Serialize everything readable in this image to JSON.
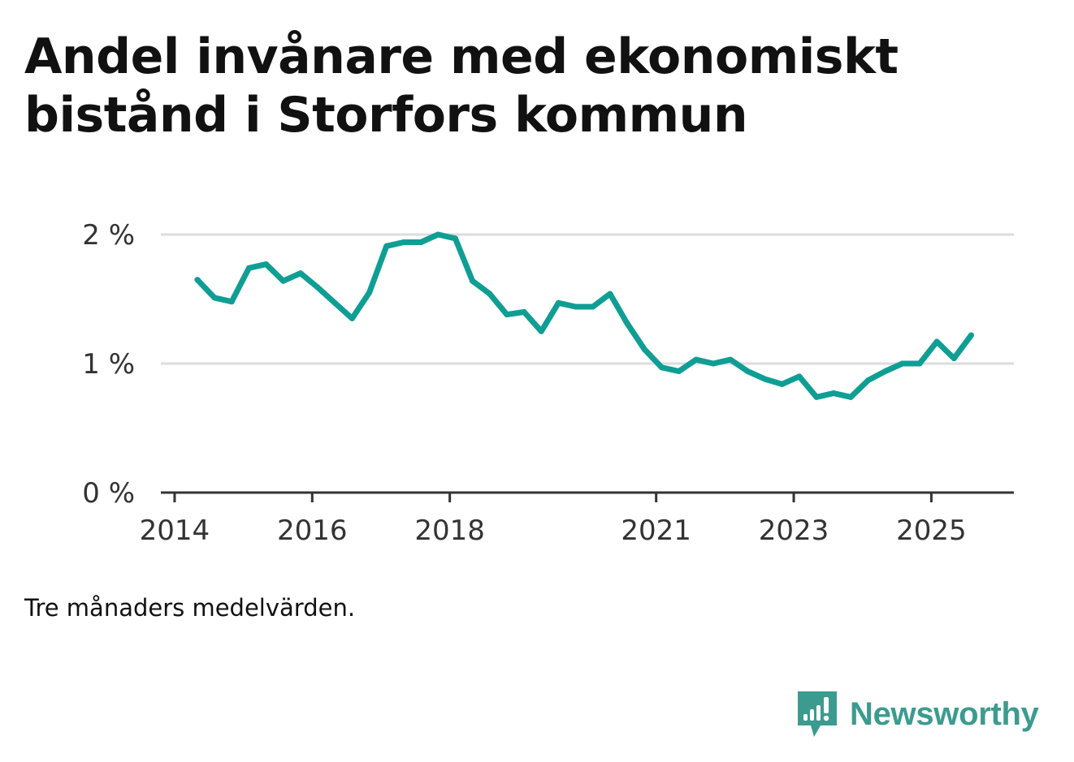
{
  "colors": {
    "line": "#0f9e94",
    "grid": "#dddddd",
    "axis": "#333333",
    "brand": "#3c9b8f"
  },
  "footnote": "Tre månaders medelvärden.",
  "brand": {
    "name": "Newsworthy",
    "icon": "newsworthy-logo-icon"
  },
  "chart_data": {
    "type": "line",
    "title": "Andel invånare med ekonomiskt bistånd i Storfors kommun",
    "xlabel": "",
    "ylabel": "",
    "ylim": [
      0,
      2
    ],
    "xlim": [
      2013.8,
      2026.2
    ],
    "yticks": [
      {
        "value": 0,
        "label": "0 %"
      },
      {
        "value": 1,
        "label": "1 %"
      },
      {
        "value": 2,
        "label": "2 %"
      }
    ],
    "xticks": [
      {
        "value": 2014,
        "label": "2014"
      },
      {
        "value": 2016,
        "label": "2016"
      },
      {
        "value": 2018,
        "label": "2018"
      },
      {
        "value": 2021,
        "label": "2021"
      },
      {
        "value": 2023,
        "label": "2023"
      },
      {
        "value": 2025,
        "label": "2025"
      }
    ],
    "grid": true,
    "series": [
      {
        "name": "Andel invånare med ekonomiskt bistånd",
        "x": [
          2014.33,
          2014.58,
          2014.83,
          2015.08,
          2015.33,
          2015.58,
          2015.83,
          2016.08,
          2016.33,
          2016.58,
          2016.83,
          2017.08,
          2017.33,
          2017.58,
          2017.83,
          2018.08,
          2018.33,
          2018.58,
          2018.83,
          2019.08,
          2019.33,
          2019.58,
          2019.83,
          2020.08,
          2020.33,
          2020.58,
          2020.83,
          2021.08,
          2021.33,
          2021.58,
          2021.83,
          2022.08,
          2022.33,
          2022.58,
          2022.83,
          2023.08,
          2023.33,
          2023.58,
          2023.83,
          2024.08,
          2024.33,
          2024.58,
          2024.83,
          2025.08,
          2025.33,
          2025.58
        ],
        "values": [
          1.65,
          1.51,
          1.48,
          1.74,
          1.77,
          1.64,
          1.7,
          1.59,
          1.47,
          1.35,
          1.55,
          1.91,
          1.94,
          1.94,
          2.0,
          1.97,
          1.64,
          1.54,
          1.38,
          1.4,
          1.25,
          1.47,
          1.44,
          1.44,
          1.54,
          1.31,
          1.11,
          0.97,
          0.94,
          1.03,
          1.0,
          1.03,
          0.94,
          0.88,
          0.84,
          0.9,
          0.74,
          0.77,
          0.74,
          0.87,
          0.94,
          1.0,
          1.0,
          1.17,
          1.04,
          1.22
        ]
      }
    ]
  }
}
